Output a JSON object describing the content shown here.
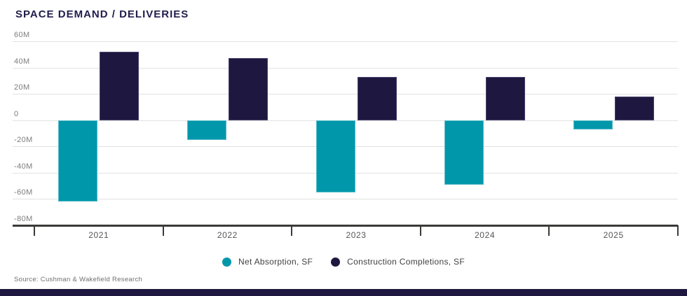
{
  "title": "SPACE DEMAND / DELIVERIES",
  "source_note": "Source: Cushman & Wakefield Research",
  "colors": {
    "net_absorption": "#0097AB",
    "construction_completions": "#1E1840",
    "title_text": "#221D4C",
    "gridline": "#E2E2E2",
    "axis_line": "#3A3A39",
    "footer_band": "#1E1840"
  },
  "legend": {
    "items": [
      {
        "label": "Net Absorption, SF",
        "color": "#0097AB"
      },
      {
        "label": "Construction Completions, SF",
        "color": "#1E1840"
      }
    ],
    "position": "bottom-center"
  },
  "chart_data": {
    "type": "bar",
    "title": "SPACE DEMAND / DELIVERIES",
    "categories": [
      "2021",
      "2022",
      "2023",
      "2024",
      "2025"
    ],
    "series": [
      {
        "name": "Net Absorption, SF",
        "color": "#0097AB",
        "values": [
          -62000000,
          -15000000,
          -55000000,
          -49000000,
          -7000000
        ]
      },
      {
        "name": "Construction Completions, SF",
        "color": "#1E1840",
        "values": [
          52000000,
          47000000,
          33000000,
          33000000,
          18000000
        ]
      }
    ],
    "values_in_millions": {
      "Net Absorption, SF": [
        -62,
        -15,
        -55,
        -49,
        -7
      ],
      "Construction Completions, SF": [
        52,
        47,
        33,
        33,
        18
      ]
    },
    "xlabel": "",
    "ylabel": "",
    "ylim_millions": [
      -80,
      60
    ],
    "yticks": [
      {
        "v": 60,
        "label": "60M"
      },
      {
        "v": 40,
        "label": "40M"
      },
      {
        "v": 20,
        "label": "20M"
      },
      {
        "v": 0,
        "label": "0"
      },
      {
        "v": -20,
        "label": "-20M"
      },
      {
        "v": -40,
        "label": "-40M"
      },
      {
        "v": -60,
        "label": "-60M"
      },
      {
        "v": -80,
        "label": "-80M"
      }
    ],
    "grid": true,
    "legend_position": "bottom"
  }
}
